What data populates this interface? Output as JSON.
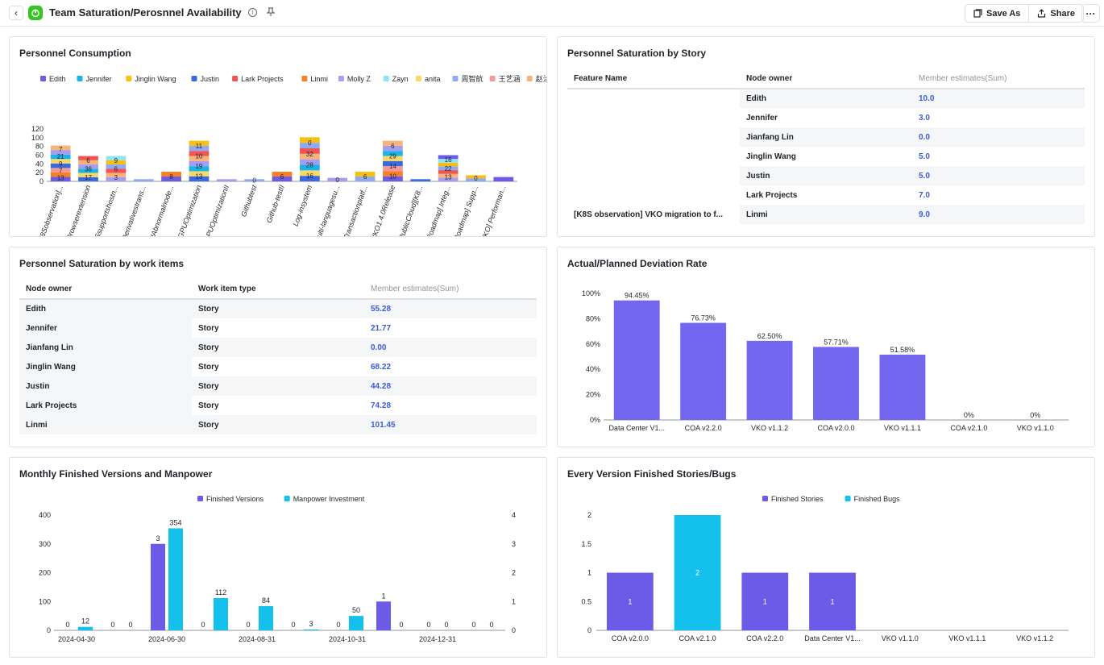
{
  "header": {
    "back_icon": "chevron-left-icon",
    "app_icon": "power-icon",
    "title": "Team Saturation/Perosnnel Availability",
    "info_icon": "info-icon",
    "pin_icon": "pin-icon",
    "save_as_label": "Save As",
    "share_label": "Share",
    "more_icon": "more-icon"
  },
  "consumption": {
    "title": "Personnel Consumption",
    "legend": [
      {
        "name": "Edith",
        "color": "#6b5be6"
      },
      {
        "name": "Jennifer",
        "color": "#1ab4e6"
      },
      {
        "name": "Jinglin Wang",
        "color": "#f5c012"
      },
      {
        "name": "Justin",
        "color": "#3b6ae0"
      },
      {
        "name": "Lark Projects",
        "color": "#ef5555"
      },
      {
        "name": "Linmi",
        "color": "#f77f24"
      },
      {
        "name": "Molly Z",
        "color": "#a69cf0"
      },
      {
        "name": "Zayn",
        "color": "#8fe3f5"
      },
      {
        "name": "anita",
        "color": "#f9d86a"
      },
      {
        "name": "周智航",
        "color": "#8fa9f2"
      },
      {
        "name": "王艺涵",
        "color": "#f39a9a"
      },
      {
        "name": "赵洽锋",
        "color": "#f8b37a"
      }
    ],
    "y_ticks": [
      "0",
      "20",
      "40",
      "60",
      "80",
      "100",
      "120"
    ],
    "ylim": [
      0,
      120
    ]
  },
  "chart_data": [
    {
      "type": "bar",
      "title": "Personnel Consumption",
      "stacked": true,
      "categories": [
        "[K8Sobservation]...",
        "Browserextension",
        "DNSsupportshostn...",
        "Derivativestrans...",
        "GPUAbnormalnode...",
        "GPUOptimization",
        "GPUOptimizationII",
        "Githubtest",
        "Github-testII",
        "Log-insystem",
        "Multi-languagesu...",
        "Transactionplatf...",
        "VKO1.4.0Release",
        "[PublicCloud][K8...",
        "[Roadmap] Integ...",
        "[Roadmap] Supp...",
        "[VKO] Performan..."
      ],
      "totals": [
        82,
        58,
        58,
        5,
        22,
        93,
        5,
        5,
        22,
        101,
        8,
        22,
        93,
        5,
        60,
        14,
        10
      ],
      "segment_labels": [
        [
          "13",
          "7",
          "9",
          "21",
          "7"
        ],
        [
          "17",
          "36",
          "6"
        ],
        [
          "3",
          "6",
          "9"
        ],
        [],
        [
          "8"
        ],
        [
          "13",
          "19",
          "10",
          "11"
        ],
        [],
        [
          "0"
        ],
        [
          "6"
        ],
        [
          "16",
          "28",
          "32",
          "0"
        ],
        [
          "0"
        ],
        [
          "6"
        ],
        [
          "10",
          "14",
          "29",
          "6"
        ],
        [],
        [
          "13",
          "22",
          "16"
        ],
        [
          "0"
        ],
        []
      ],
      "ylim": [
        0,
        120
      ],
      "legend_position": "top"
    },
    {
      "type": "bar",
      "title": "Actual/Planned Deviation Rate",
      "categories": [
        "Data Center V1...",
        "COA v2.2.0",
        "VKO v1.1.2",
        "COA v2.0.0",
        "VKO v1.1.1",
        "COA v2.1.0",
        "VKO v1.1.0"
      ],
      "values": [
        94.45,
        76.73,
        62.5,
        57.71,
        51.58,
        0,
        0
      ],
      "value_labels": [
        "94.45%",
        "76.73%",
        "62.50%",
        "57.71%",
        "51.58%",
        "0%",
        "0%"
      ],
      "y_ticks": [
        "0%",
        "20%",
        "40%",
        "60%",
        "80%",
        "100%"
      ],
      "ylim": [
        0,
        100
      ]
    },
    {
      "type": "bar",
      "title": "Monthly Finished Versions and Manpower",
      "x_tick_labels": [
        "2024-04-30",
        "2024-06-30",
        "2024-08-31",
        "2024-10-31",
        "2024-12-31"
      ],
      "months": [
        "2024-04",
        "2024-05",
        "2024-06",
        "2024-07",
        "2024-08",
        "2024-09",
        "2024-10",
        "2024-11",
        "2024-12",
        "2025-01"
      ],
      "series": [
        {
          "name": "Finished Versions",
          "axis": "right",
          "values": [
            0,
            0,
            3,
            0,
            0,
            0,
            0,
            1,
            0,
            0
          ],
          "color": "#6b5be6"
        },
        {
          "name": "Manpower Investment",
          "axis": "left",
          "values": [
            12,
            0,
            354,
            112,
            84,
            3,
            50,
            0,
            0,
            0
          ],
          "color": "#14c1ec"
        }
      ],
      "y_ticks_left": [
        "0",
        "100",
        "200",
        "300",
        "400"
      ],
      "y_ticks_right": [
        "0",
        "1",
        "2",
        "3",
        "4"
      ],
      "ylim_left": [
        0,
        400
      ],
      "ylim_right": [
        0,
        4
      ],
      "legend_position": "top"
    },
    {
      "type": "bar",
      "title": "Every Version Finished Stories/Bugs",
      "categories": [
        "COA v2.0.0",
        "COA v2.1.0",
        "COA v2.2.0",
        "Data Center V1...",
        "VKO v1.1.0",
        "VKO v1.1.1",
        "VKO v1.1.2"
      ],
      "series": [
        {
          "name": "Finished Stories",
          "values": [
            1,
            0,
            1,
            1,
            0,
            0,
            0
          ],
          "color": "#6b5be6"
        },
        {
          "name": "Finished Bugs",
          "values": [
            0,
            2,
            0,
            0,
            0,
            0,
            0
          ],
          "color": "#14c1ec"
        }
      ],
      "y_ticks": [
        "0",
        "0.5",
        "1",
        "1.5",
        "2"
      ],
      "ylim": [
        0,
        2
      ],
      "legend_position": "top"
    }
  ],
  "story_table": {
    "title": "Personnel Saturation by Story",
    "columns": [
      "Feature Name",
      "Node owner",
      "Member estimates(Sum)"
    ],
    "feature_name": "[K8S observation] VKO migration to f...",
    "rows": [
      {
        "owner": "Edith",
        "value": "10.0"
      },
      {
        "owner": "Jennifer",
        "value": "3.0"
      },
      {
        "owner": "Jianfang Lin",
        "value": "0.0"
      },
      {
        "owner": "Jinglin Wang",
        "value": "5.0"
      },
      {
        "owner": "Justin",
        "value": "5.0"
      },
      {
        "owner": "Lark Projects",
        "value": "7.0"
      },
      {
        "owner": "Linmi",
        "value": "9.0"
      }
    ]
  },
  "workitem_table": {
    "title": "Personnel Saturation by work items",
    "columns": [
      "Node owner",
      "Work item type",
      "Member estimates(Sum)"
    ],
    "rows": [
      {
        "owner": "Edith",
        "type": "Story",
        "value": "55.28"
      },
      {
        "owner": "Jennifer",
        "type": "Story",
        "value": "21.77"
      },
      {
        "owner": "Jianfang Lin",
        "type": "Story",
        "value": "0.00"
      },
      {
        "owner": "Jinglin Wang",
        "type": "Story",
        "value": "68.22"
      },
      {
        "owner": "Justin",
        "type": "Story",
        "value": "44.28"
      },
      {
        "owner": "Lark Projects",
        "type": "Story",
        "value": "74.28"
      },
      {
        "owner": "Linmi",
        "type": "Story",
        "value": "101.45"
      }
    ]
  },
  "deviation": {
    "title": "Actual/Planned Deviation Rate"
  },
  "monthly": {
    "title": "Monthly Finished Versions and Manpower"
  },
  "stories_bugs": {
    "title": "Every Version Finished Stories/Bugs"
  }
}
